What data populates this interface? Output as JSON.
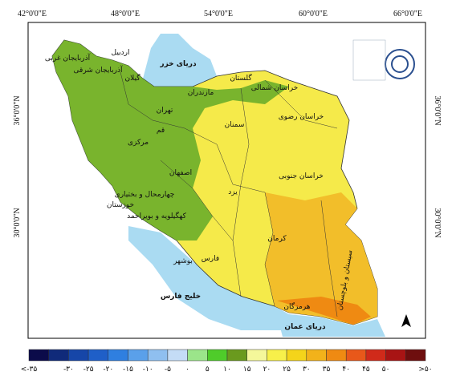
{
  "map": {
    "lon_labels": [
      "42°0'0\"E",
      "48°0'0\"E",
      "54°0'0\"E",
      "60°0'0\"E",
      "66°0'0\"E"
    ],
    "lat_labels": [
      "36°0'0\"N",
      "30°0'0\"N"
    ],
    "seas": [
      "دریای خزر",
      "خلیج فارس",
      "دریای عمان"
    ],
    "provinces": [
      "آذربایجان غربی",
      "آذربایجان شرقی",
      "اردبیل",
      "گیلان",
      "مازندران",
      "گلستان",
      "خراسان شمالی",
      "خراسان رضوی",
      "سمنان",
      "تهران",
      "قم",
      "مرکزی",
      "اصفهان",
      "یزد",
      "خراسان جنوبی",
      "چهارمحال و بختیاری",
      "کهگیلویه و بویراحمد",
      "خوزستان",
      "فارس",
      "بوشهر",
      "کرمان",
      "هرمزگان",
      "سیستان و بلوچستان"
    ]
  },
  "legend": {
    "colors": [
      "#0b0b4a",
      "#102a7a",
      "#1646a8",
      "#1f5fc8",
      "#2f7fe0",
      "#5aa0ea",
      "#8fbff0",
      "#c4dcf6",
      "#9be58a",
      "#4fcc2a",
      "#6a9a1e",
      "#f4f79a",
      "#f7f04a",
      "#f4d41a",
      "#f2b21a",
      "#ef8a12",
      "#e8581a",
      "#d02a1a",
      "#a81414",
      "#6e0e0e"
    ],
    "labels": [
      "<-۳۵",
      "-۳۰",
      "-۲۵",
      "-۲۰",
      "-۱۵",
      "-۱۰",
      "-۵",
      "۰",
      "۵",
      "۱۰",
      "۱۵",
      "۲۰",
      "۲۵",
      "۳۰",
      "۳۵",
      "۴۰",
      "۴۵",
      "۵۰",
      ">۵۰"
    ]
  }
}
